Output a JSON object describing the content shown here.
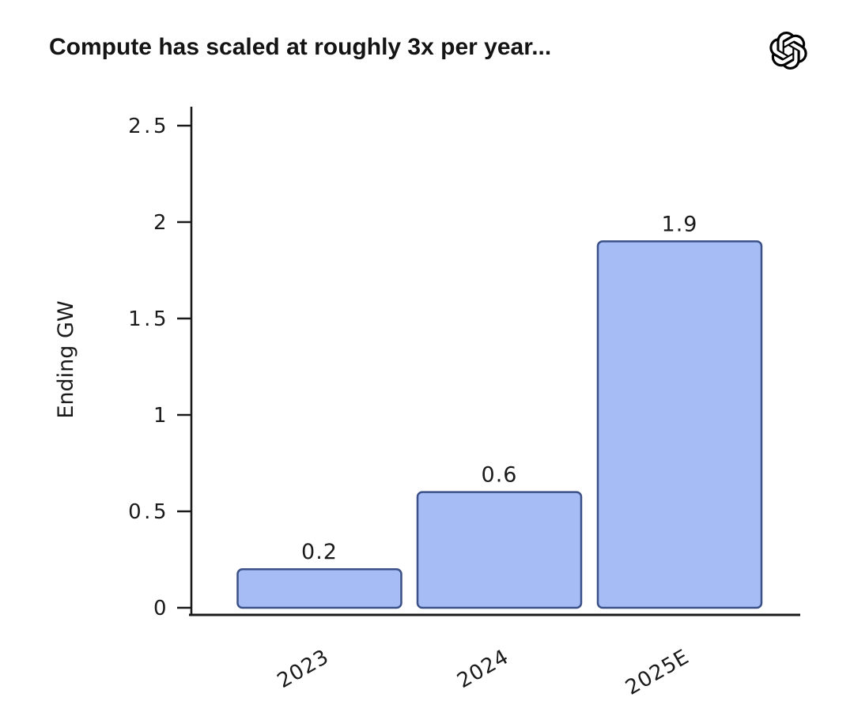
{
  "header": {
    "logo_name": "openai-logo"
  },
  "chart_data": {
    "type": "bar",
    "title": "Compute has scaled at roughly 3x per year...",
    "categories": [
      "2023",
      "2024",
      "2025E"
    ],
    "values": [
      0.2,
      0.6,
      1.9
    ],
    "value_labels": [
      "0.2",
      "0.6",
      "1.9"
    ],
    "xlabel": "",
    "ylabel": "Ending GW",
    "yticks": [
      0,
      0.5,
      1,
      1.5,
      2,
      2.5
    ],
    "ytick_labels": [
      "0",
      "0.5",
      "1",
      "1.5",
      "2",
      "2.5"
    ],
    "ylim": [
      0,
      2.6
    ],
    "grid": false,
    "legend": "none",
    "colors": {
      "bar_fill": "#a6bcf5",
      "bar_stroke": "#3a5087",
      "axis": "#1a1a1a",
      "text": "#1a1a1a",
      "background": "#ffffff"
    }
  }
}
